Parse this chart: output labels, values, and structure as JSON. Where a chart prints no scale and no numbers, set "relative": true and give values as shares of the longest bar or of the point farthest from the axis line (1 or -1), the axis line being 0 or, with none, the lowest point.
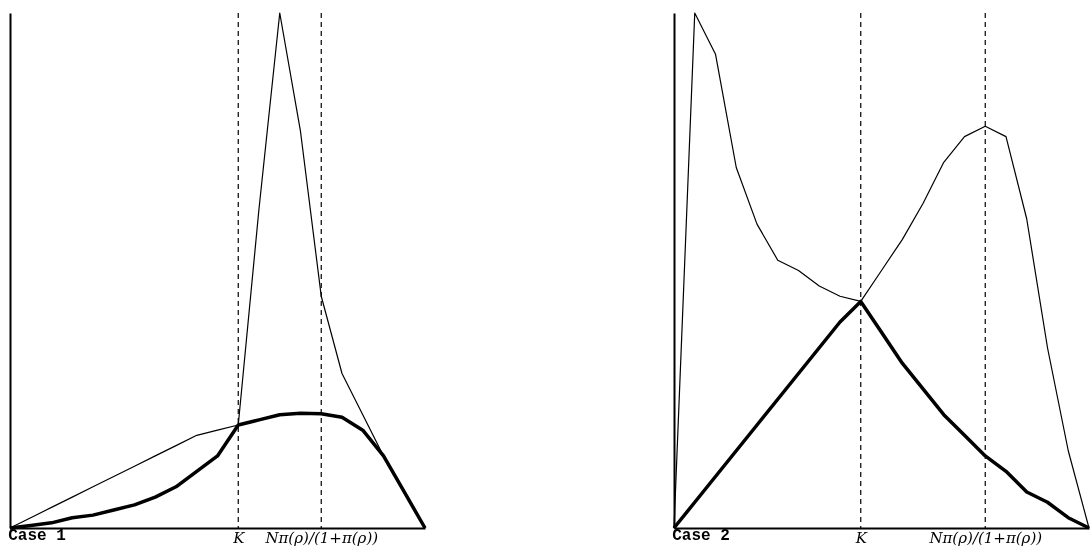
{
  "chart_data": [
    {
      "type": "line",
      "title": "Case 1",
      "relative": true,
      "grid": false,
      "categories": [
        null,
        null,
        null,
        null,
        null,
        null,
        null,
        null,
        null,
        null,
        null,
        "K",
        null,
        null,
        null,
        "Nπ(ρ)/(1+π(ρ))",
        null,
        null,
        null,
        null,
        null
      ],
      "series": [
        {
          "color": "#000000",
          "values": [
            0,
            0.005,
            0.01,
            0.02,
            0.025,
            0.035,
            0.045,
            0.06,
            0.08,
            0.11,
            0.14,
            0.2,
            0.62,
            1.0,
            0.77,
            0.45,
            0.3,
            0.22,
            0.14,
            0.07,
            0
          ]
        },
        {
          "color": "#000000",
          "values": [
            0,
            0.02,
            0.04,
            0.06,
            0.08,
            0.1,
            0.12,
            0.14,
            0.16,
            0.18,
            0.19,
            0.2,
            0.21,
            0.22,
            0.223,
            0.222,
            0.215,
            0.19,
            0.14,
            0.07,
            0
          ]
        },
        {
          "color": "#000000",
          "values": [
            0,
            0.005,
            0.01,
            0.02,
            0.025,
            0.035,
            0.045,
            0.06,
            0.08,
            0.11,
            0.14,
            0.2,
            0.21,
            0.22,
            0.223,
            0.222,
            0.215,
            0.19,
            0.14,
            0.07,
            0
          ]
        }
      ],
      "ref_lines": [
        {
          "axis": "x",
          "value": "K",
          "line_style": "dashed"
        },
        {
          "axis": "x",
          "value": "Nπ(ρ)/(1+π(ρ))",
          "line_style": "dashed"
        }
      ]
    },
    {
      "type": "line",
      "title": "Case 2",
      "relative": true,
      "grid": false,
      "categories": [
        null,
        null,
        null,
        null,
        null,
        null,
        null,
        null,
        null,
        "K",
        null,
        null,
        null,
        null,
        null,
        "Nπ(ρ)/(1+π(ρ))",
        null,
        null,
        null,
        null,
        null
      ],
      "series": [
        {
          "color": "#000000",
          "values": [
            0,
            1.0,
            0.92,
            0.7,
            0.59,
            0.52,
            0.5,
            0.47,
            0.45,
            0.44,
            0.38,
            0.32,
            0.27,
            0.22,
            0.18,
            0.14,
            0.11,
            0.07,
            0.05,
            0.02,
            0
          ]
        },
        {
          "color": "#000000",
          "values": [
            0,
            0.05,
            0.1,
            0.15,
            0.2,
            0.25,
            0.3,
            0.35,
            0.4,
            0.44,
            0.5,
            0.56,
            0.63,
            0.71,
            0.76,
            0.78,
            0.76,
            0.6,
            0.35,
            0.15,
            0
          ]
        },
        {
          "color": "#000000",
          "values": [
            0,
            0.05,
            0.1,
            0.15,
            0.2,
            0.25,
            0.3,
            0.35,
            0.4,
            0.44,
            0.38,
            0.32,
            0.27,
            0.22,
            0.18,
            0.14,
            0.11,
            0.07,
            0.05,
            0.02,
            0
          ]
        }
      ],
      "ref_lines": [
        {
          "axis": "x",
          "value": "K",
          "line_style": "dashed"
        },
        {
          "axis": "x",
          "value": "Nπ(ρ)/(1+π(ρ))",
          "line_style": "dashed"
        }
      ]
    }
  ]
}
